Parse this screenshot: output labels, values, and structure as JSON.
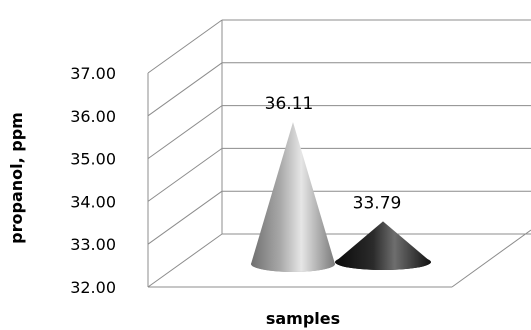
{
  "chart_data": {
    "type": "bar",
    "style": "3d-cone",
    "title": "",
    "xlabel": "samples",
    "ylabel": "propanol, ppm",
    "ylim": [
      32.0,
      37.0
    ],
    "yticks": [
      "32.00",
      "33.00",
      "34.00",
      "35.00",
      "36.00",
      "37.00"
    ],
    "grid": true,
    "legend": "none",
    "series": [
      {
        "values": [
          36.11,
          33.79
        ],
        "colors": [
          "#b4b4b4",
          "#2a2a2a"
        ]
      }
    ],
    "data_labels": [
      "36.11",
      "33.79"
    ]
  }
}
